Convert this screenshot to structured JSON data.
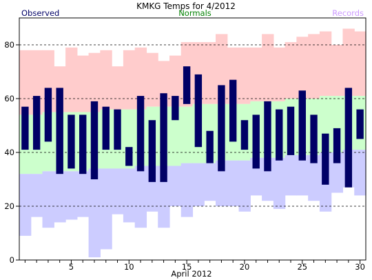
{
  "chart_data": {
    "type": "bar",
    "title": "KMKG Temps for 4/2012",
    "xlabel": "April 2012",
    "ylabel": "",
    "xlim": [
      1,
      30
    ],
    "ylim": [
      0,
      90
    ],
    "x_ticks": [
      5,
      10,
      15,
      20,
      25,
      30
    ],
    "y_ticks": [
      0,
      20,
      40,
      60,
      80
    ],
    "gridlines": [
      20,
      40,
      60,
      80
    ],
    "legend": {
      "placement": "top",
      "observed_label": "Observed",
      "normals_label": "Normals",
      "records_label": "Records"
    },
    "colors": {
      "observed": "#000066",
      "normals": "#ccffcc",
      "record_high": "#ffcccc",
      "record_low": "#ccccff",
      "normals_label": "#008000",
      "records_label": "#cc99ff",
      "observed_label": "#000066"
    },
    "days": [
      1,
      2,
      3,
      4,
      5,
      6,
      7,
      8,
      9,
      10,
      11,
      12,
      13,
      14,
      15,
      16,
      17,
      18,
      19,
      20,
      21,
      22,
      23,
      24,
      25,
      26,
      27,
      28,
      29,
      30
    ],
    "record_high": [
      78,
      78,
      78,
      72,
      79,
      76,
      77,
      78,
      72,
      78,
      79,
      77,
      74,
      76,
      81,
      81,
      81,
      84,
      79,
      79,
      79,
      84,
      79,
      81,
      83,
      84,
      85,
      80,
      86,
      85
    ],
    "normal_high": [
      54,
      54,
      55,
      55,
      55,
      55,
      55,
      56,
      56,
      56,
      56,
      57,
      57,
      57,
      57,
      58,
      58,
      58,
      58,
      58,
      59,
      59,
      59,
      60,
      60,
      60,
      61,
      61,
      61,
      61
    ],
    "normal_low": [
      32,
      32,
      33,
      33,
      33,
      33,
      34,
      34,
      34,
      34,
      35,
      35,
      35,
      35,
      36,
      36,
      36,
      37,
      37,
      37,
      38,
      38,
      38,
      39,
      39,
      39,
      40,
      40,
      41,
      41
    ],
    "record_low": [
      9,
      16,
      12,
      14,
      15,
      16,
      1,
      4,
      17,
      14,
      12,
      18,
      12,
      20,
      16,
      20,
      22,
      20,
      20,
      18,
      24,
      22,
      19,
      24,
      24,
      22,
      18,
      25,
      27,
      24
    ],
    "observed_high": [
      57,
      61,
      64,
      64,
      54,
      54,
      59,
      57,
      56,
      42,
      61,
      52,
      62,
      61,
      72,
      69,
      48,
      65,
      67,
      52,
      54,
      59,
      56,
      57,
      63,
      54,
      47,
      49,
      64,
      56
    ],
    "observed_low": [
      41,
      41,
      44,
      32,
      34,
      32,
      30,
      41,
      41,
      35,
      33,
      29,
      29,
      52,
      58,
      42,
      36,
      33,
      44,
      41,
      34,
      33,
      37,
      39,
      37,
      36,
      28,
      36,
      27,
      45
    ]
  }
}
